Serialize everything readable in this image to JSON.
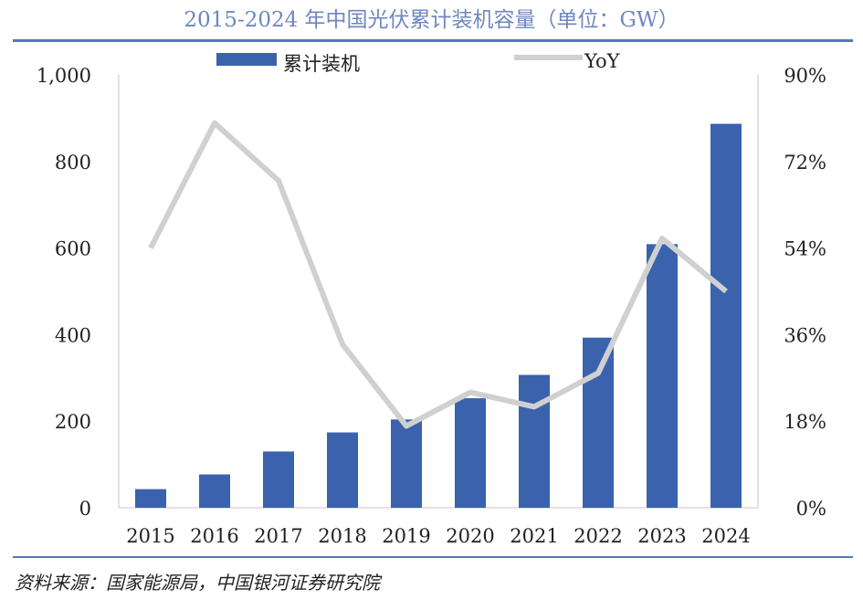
{
  "title": "2015-2024 年中国光伏累计装机容量（单位：GW）",
  "source": "资料来源：国家能源局，中国银河证券研究院",
  "chart_data": {
    "type": "bar",
    "title": "2015-2024 年中国光伏累计装机容量（单位：GW）",
    "categories": [
      "2015",
      "2016",
      "2017",
      "2018",
      "2019",
      "2020",
      "2021",
      "2022",
      "2023",
      "2024"
    ],
    "series": [
      {
        "name": "累计装机",
        "type": "bar",
        "axis": "left",
        "color": "#3a62ad",
        "values": [
          43,
          77,
          130,
          174,
          204,
          253,
          307,
          393,
          609,
          887
        ]
      },
      {
        "name": "YoY",
        "type": "line",
        "axis": "right",
        "color": "#d0d0d0",
        "values": [
          54,
          80,
          68,
          34,
          17,
          24,
          21,
          28,
          56,
          45
        ]
      }
    ],
    "y_left": {
      "range": [
        0,
        1000
      ],
      "ticks": [
        "0",
        "200",
        "400",
        "600",
        "800",
        "1,000"
      ]
    },
    "y_right": {
      "range": [
        0,
        90
      ],
      "unit": "%",
      "ticks": [
        "0%",
        "18%",
        "36%",
        "54%",
        "72%",
        "90%"
      ]
    },
    "legend": "top",
    "grid": false
  }
}
